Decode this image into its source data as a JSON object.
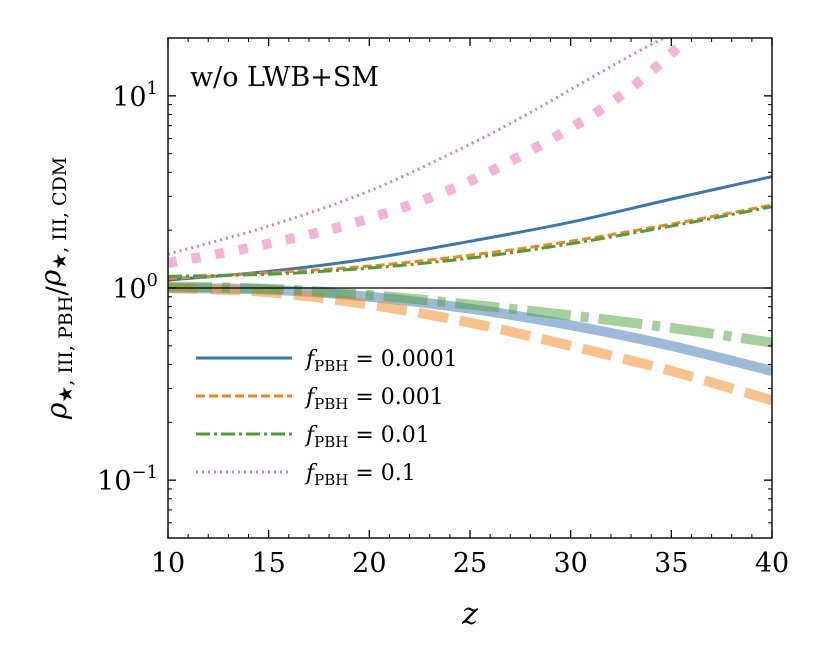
{
  "chart_data": {
    "type": "line",
    "xscale": "linear",
    "yscale": "log",
    "xlim": [
      10,
      40
    ],
    "ylim": [
      0.05,
      20
    ],
    "xlabel": "z",
    "ylabel": {
      "parts": [
        {
          "t": "ρ",
          "it": true
        },
        {
          "t": "★, III, PBH",
          "sub": true
        },
        {
          "t": "/",
          "it": false
        },
        {
          "t": "ρ",
          "it": true
        },
        {
          "t": "★, III, CDM",
          "sub": true
        }
      ]
    },
    "annotation": "w/o LWB+SM",
    "x_ticks": [
      10,
      15,
      20,
      25,
      30,
      35,
      40
    ],
    "x_tick_labels": [
      "10",
      "15",
      "20",
      "25",
      "30",
      "35",
      "40"
    ],
    "y_ticks": [
      {
        "value": 0.1,
        "base": "10",
        "exp": "−1"
      },
      {
        "value": 1,
        "base": "10",
        "exp": "0"
      },
      {
        "value": 10,
        "base": "10",
        "exp": "1"
      }
    ],
    "reference_line": {
      "y": 1,
      "color": "#000000"
    },
    "legend": {
      "position": "lower-left",
      "entries": [
        {
          "series": "fpbh_0001",
          "prefix": "f",
          "sub": "PBH",
          "value": " = 0.0001"
        },
        {
          "series": "fpbh_001",
          "prefix": "f",
          "sub": "PBH",
          "value": " = 0.001"
        },
        {
          "series": "fpbh_01",
          "prefix": "f",
          "sub": "PBH",
          "value": " = 0.01"
        },
        {
          "series": "fpbh_1",
          "prefix": "f",
          "sub": "PBH",
          "value": " = 0.1"
        }
      ]
    },
    "series": [
      {
        "id": "fpbh_0001",
        "name": "f_PBH = 0.0001",
        "color": "#3b78b1",
        "dash": "",
        "width": 3,
        "opacity": 1,
        "x": [
          10,
          15,
          20,
          25,
          30,
          35,
          40
        ],
        "y": [
          1.1,
          1.22,
          1.42,
          1.75,
          2.2,
          2.9,
          3.8
        ]
      },
      {
        "id": "fpbh_001",
        "name": "f_PBH = 0.001",
        "color": "#f58518",
        "dash": "9 4",
        "width": 3,
        "opacity": 1,
        "x": [
          10,
          15,
          20,
          25,
          30,
          35,
          40
        ],
        "y": [
          1.12,
          1.2,
          1.3,
          1.48,
          1.75,
          2.15,
          2.7
        ]
      },
      {
        "id": "fpbh_01",
        "name": "f_PBH = 0.01",
        "color": "#4c9f38",
        "dash": "14 4 3 4",
        "width": 3,
        "opacity": 1,
        "x": [
          10,
          15,
          20,
          25,
          30,
          35,
          40
        ],
        "y": [
          1.15,
          1.18,
          1.27,
          1.43,
          1.7,
          2.1,
          2.65
        ]
      },
      {
        "id": "fpbh_1",
        "name": "f_PBH = 0.1",
        "color": "#e377c2",
        "dash": "2 4",
        "width": 3,
        "opacity": 1,
        "x": [
          10,
          15,
          20,
          25,
          28,
          30,
          32,
          34,
          35.5
        ],
        "y": [
          1.5,
          2.1,
          3.2,
          5.6,
          8.2,
          10.8,
          14.2,
          18.5,
          22
        ]
      },
      {
        "id": "fpbh_0001_thick",
        "name": "f_PBH = 0.0001 (thick)",
        "color": "#3b78b1",
        "dash": "",
        "width": 10,
        "opacity": 0.5,
        "x": [
          10,
          15,
          20,
          25,
          30,
          35,
          40
        ],
        "y": [
          1.0,
          0.98,
          0.9,
          0.78,
          0.64,
          0.5,
          0.37
        ]
      },
      {
        "id": "fpbh_001_thick",
        "name": "f_PBH = 0.001 (thick)",
        "color": "#f58518",
        "dash": "30 12",
        "width": 10,
        "opacity": 0.5,
        "x": [
          10,
          15,
          20,
          25,
          30,
          35,
          40
        ],
        "y": [
          1.0,
          0.95,
          0.82,
          0.66,
          0.5,
          0.37,
          0.26
        ]
      },
      {
        "id": "fpbh_01_thick",
        "name": "f_PBH = 0.01 (thick)",
        "color": "#4c9f38",
        "dash": "44 10 8 10",
        "width": 10,
        "opacity": 0.5,
        "x": [
          10,
          15,
          20,
          25,
          30,
          35,
          40
        ],
        "y": [
          1.02,
          0.99,
          0.92,
          0.82,
          0.72,
          0.62,
          0.52
        ]
      },
      {
        "id": "fpbh_1_thick",
        "name": "f_PBH = 0.1 (thick)",
        "color": "#f4a8d4",
        "dash": "9 15",
        "width": 10,
        "opacity": 0.9,
        "x": [
          10,
          15,
          20,
          25,
          30,
          33,
          35.5
        ],
        "y": [
          1.35,
          1.7,
          2.3,
          3.6,
          6.8,
          11.0,
          18.5
        ]
      }
    ]
  }
}
